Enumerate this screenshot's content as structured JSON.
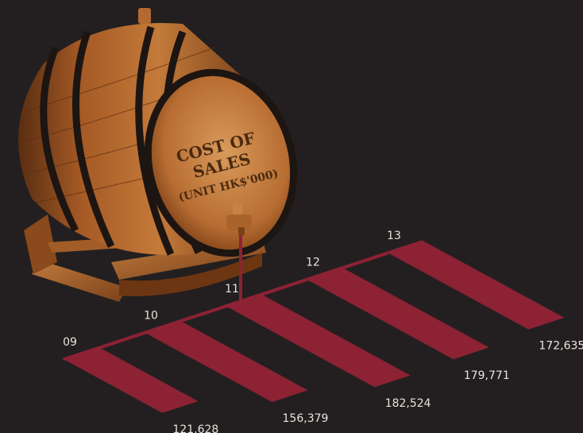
{
  "barrel": {
    "line1": "COST OF",
    "line2": "SALES",
    "line3": "(UNIT HK$'000)"
  },
  "colors": {
    "background": "#231f20",
    "bar": "#8c2234",
    "label": "#e9e3dc"
  },
  "chart_data": {
    "type": "bar",
    "title": "COST OF SALES (UNIT HK$'000)",
    "categories": [
      "09",
      "10",
      "11",
      "12",
      "13"
    ],
    "values": [
      121628,
      156379,
      182524,
      179771,
      172635
    ],
    "value_labels": [
      "121,628",
      "156,379",
      "182,524",
      "179,771",
      "172,635"
    ]
  }
}
